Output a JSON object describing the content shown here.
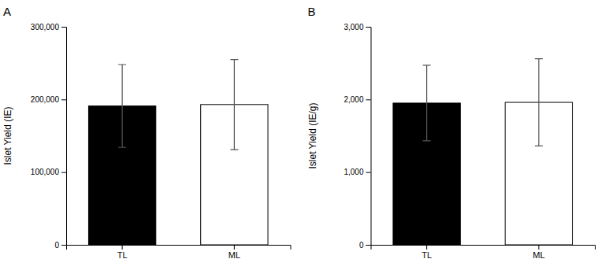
{
  "chart_data": [
    {
      "type": "bar",
      "title": "A",
      "ylabel": "Islet Yield (IE)",
      "categories": [
        "TL",
        "ML"
      ],
      "values": [
        191000,
        193000
      ],
      "errors": [
        57000,
        62000
      ],
      "colors": [
        "#000000",
        "#ffffff"
      ],
      "ylim": [
        0,
        300000
      ],
      "yticks": [
        0,
        {
          "value": 100000,
          "label": "100,000"
        },
        {
          "value": 200000,
          "label": "200,000"
        },
        {
          "value": 300000,
          "label": "300,000"
        }
      ],
      "grid": false
    },
    {
      "type": "bar",
      "title": "B",
      "ylabel": "Islet Yield (IE/g)",
      "categories": [
        "TL",
        "ML"
      ],
      "values": [
        1950,
        1960
      ],
      "errors": [
        520,
        600
      ],
      "colors": [
        "#000000",
        "#ffffff"
      ],
      "ylim": [
        0,
        3000
      ],
      "yticks": [
        0,
        {
          "value": 1000,
          "label": "1,000"
        },
        {
          "value": 2000,
          "label": "2,000"
        },
        {
          "value": 3000,
          "label": "3,000"
        }
      ],
      "grid": false
    }
  ]
}
